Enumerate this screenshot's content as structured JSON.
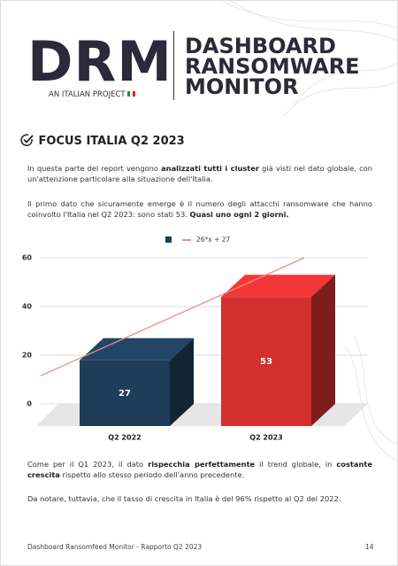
{
  "header": {
    "logo": "DRM",
    "tagline": "AN ITALIAN PROJECT",
    "title_lines": [
      "DASHBOARD",
      "RANSOMWARE",
      "MONITOR"
    ]
  },
  "section": {
    "title": "FOCUS ITALIA Q2 2023"
  },
  "paragraphs": [
    [
      {
        "text": "In questa parte del report vengono ",
        "bold": false
      },
      {
        "text": "analizzati tutti i cluster",
        "bold": true
      },
      {
        "text": " già visti nel dato globale, con un'attenzione particolare alla situazione dell'Italia.",
        "bold": false
      }
    ],
    [
      {
        "text": "Il primo dato che sicuramente emerge è il numero degli attacchi ransomware che hanno coinvolto l'Italia nel Q2 2023: sono stati 53. ",
        "bold": false
      },
      {
        "text": "Quasi uno ogni 2 giorni.",
        "bold": true
      }
    ]
  ],
  "chart_data": {
    "type": "bar3d",
    "categories": [
      "Q2 2022",
      "Q2 2023"
    ],
    "values": [
      27,
      53
    ],
    "colors": [
      "#1e3d59",
      "#d32f2f"
    ],
    "ylim": [
      0,
      60
    ],
    "yticks": [
      0,
      20,
      40,
      60
    ],
    "grid": true,
    "trendline": {
      "name": "26*x + 27",
      "color": "#f08a8a",
      "values": [
        27,
        53
      ]
    }
  },
  "paragraphs_after": [
    [
      {
        "text": "Come per il Q1 2023, il dato ",
        "bold": false
      },
      {
        "text": "rispecchia perfettamente",
        "bold": true
      },
      {
        "text": " il trend globale, in ",
        "bold": false
      },
      {
        "text": "costante crescita",
        "bold": true
      },
      {
        "text": " rispetto allo stesso periodo dell'anno precedente.",
        "bold": false
      }
    ],
    [
      {
        "text": "Da notare, tuttavia, che il tasso di crescita in Italia è del 96% rispetto al Q2 del 2022.",
        "bold": false
      }
    ]
  ],
  "footer": {
    "text": "Dashboard Ransomfeed Monitor - Rapporto Q2 2023",
    "page": "14"
  }
}
